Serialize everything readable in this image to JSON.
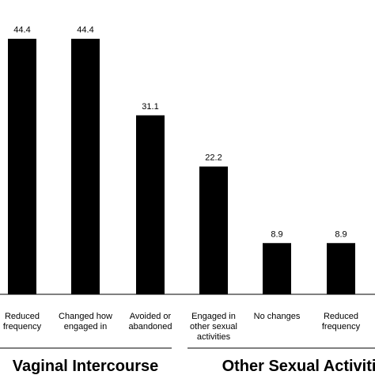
{
  "chart_data": {
    "type": "bar",
    "categories": [
      [
        "Reduced",
        "frequency"
      ],
      [
        "Changed how",
        "engaged in"
      ],
      [
        "Avoided or",
        "abandoned"
      ],
      [
        "Engaged in",
        "other sexual",
        "activities"
      ],
      [
        "No changes"
      ],
      [
        "Reduced",
        "frequency"
      ]
    ],
    "values": [
      44.4,
      44.4,
      31.1,
      22.2,
      8.9,
      8.9
    ],
    "value_labels": [
      "44.4",
      "44.4",
      "31.1",
      "22.2",
      "8.9",
      "8.9"
    ],
    "groups": [
      {
        "label": "Vaginal Intercourse",
        "categories": [
          0,
          1,
          2
        ]
      },
      {
        "label": "Other Sexual Activiti",
        "categories": [
          3,
          4,
          5
        ]
      }
    ],
    "ylim": [
      0,
      44.4
    ],
    "colors": {
      "bar": "#000000",
      "axis": "#000000"
    }
  }
}
